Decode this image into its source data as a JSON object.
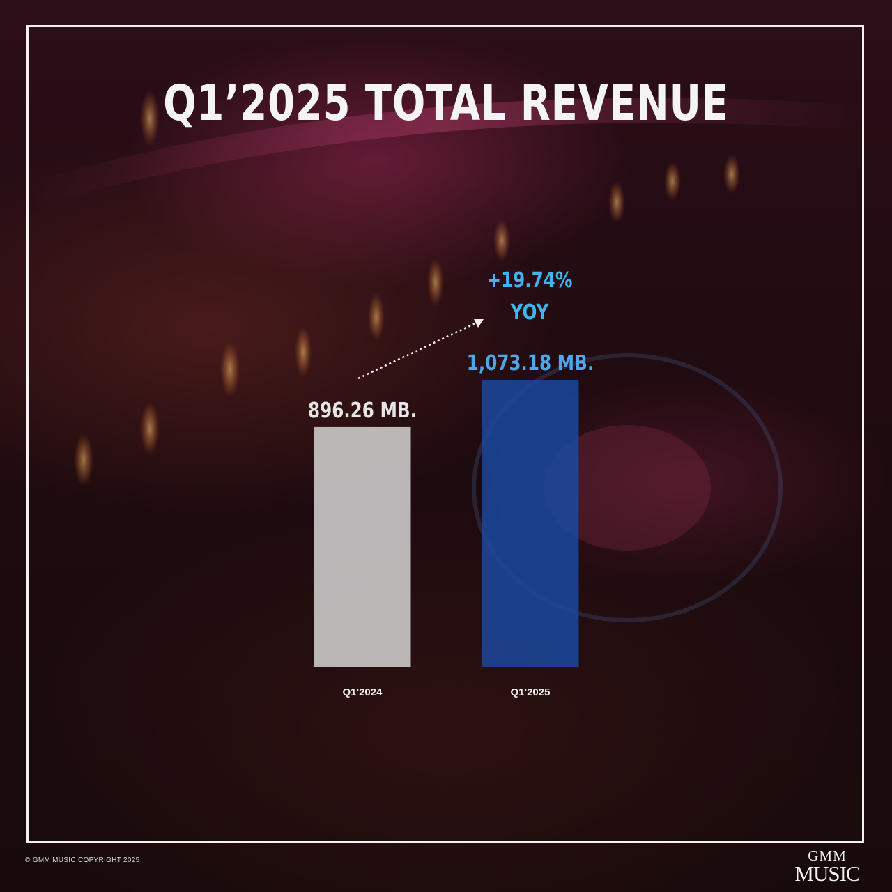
{
  "header": {
    "title": "Q1’2025 TOTAL REVENUE"
  },
  "colors": {
    "bar_previous": "#c9c6c6",
    "bar_current": "#1a4aa3",
    "growth_text": "#3fb4ee",
    "current_value_text": "#4fa6e8",
    "previous_value_text": "#e6e6e6",
    "frame": "#f2f2f2"
  },
  "chart_data": {
    "type": "bar",
    "title": "Q1’2025 TOTAL REVENUE",
    "categories": [
      "Q1'2024",
      "Q1'2025"
    ],
    "values": [
      896.26,
      1073.18
    ],
    "value_labels": [
      "896.26 MB.",
      "1,073.18 MB."
    ],
    "unit": "MB.",
    "ylim": [
      0,
      1073.18
    ],
    "grid": false,
    "legend": "none",
    "annotation": {
      "growth": "+19.74%",
      "period": "YOY"
    }
  },
  "footer": {
    "copyright": "© GMM MUSIC COPYRIGHT 2025"
  },
  "logo": {
    "top": "GMM",
    "bottom": "MUSIC"
  }
}
